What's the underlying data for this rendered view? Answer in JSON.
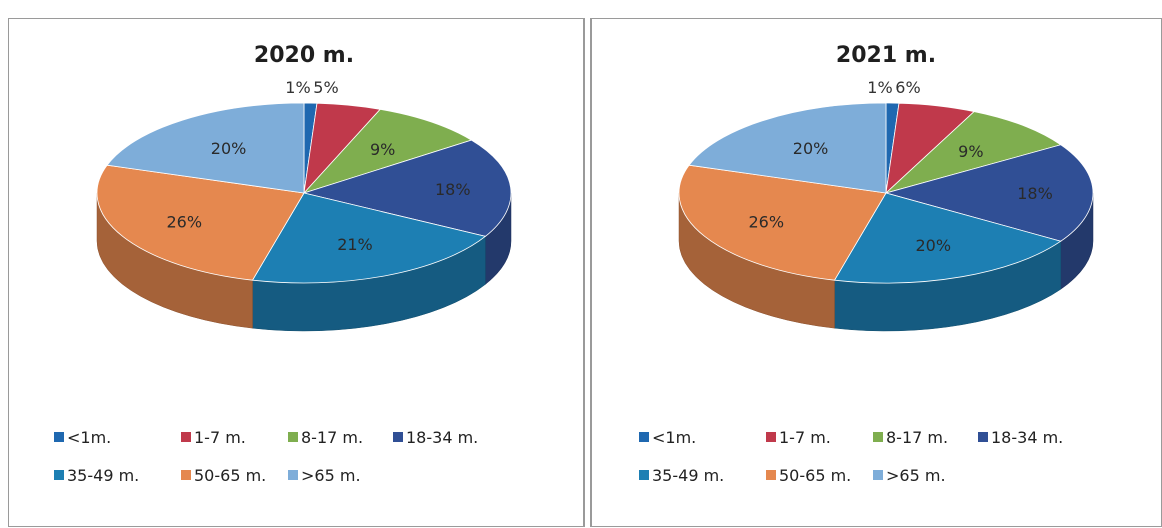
{
  "colors": {
    "<1m.": "#1f68b0",
    "1-7 m.": "#c0394b",
    "8-17 m.": "#7fae4f",
    "18-34 m.": "#304f95",
    "35-49 m.": "#1d7fb3",
    "50-65 m.": "#e5884f",
    ">65 m.": "#7eadd9"
  },
  "chart_data": [
    {
      "type": "pie",
      "title": "2020 m.",
      "categories": [
        "<1m.",
        "1-7 m.",
        "8-17 m.",
        "18-34 m.",
        "35-49 m.",
        "50-65 m.",
        ">65 m."
      ],
      "values": [
        1,
        5,
        9,
        18,
        21,
        26,
        20
      ],
      "data_labels": [
        "1%",
        "5%",
        "9%",
        "18%",
        "21%",
        "26%",
        "20%"
      ],
      "legend_position": "bottom",
      "style": "3d"
    },
    {
      "type": "pie",
      "title": "2021 m.",
      "categories": [
        "<1m.",
        "1-7 m.",
        "8-17 m.",
        "18-34 m.",
        "35-49 m.",
        "50-65 m.",
        ">65 m."
      ],
      "values": [
        1,
        6,
        9,
        18,
        20,
        26,
        20
      ],
      "data_labels": [
        "1%",
        "6%",
        "9%",
        "18%",
        "20%",
        "26%",
        "20%"
      ],
      "legend_position": "bottom",
      "style": "3d"
    }
  ]
}
